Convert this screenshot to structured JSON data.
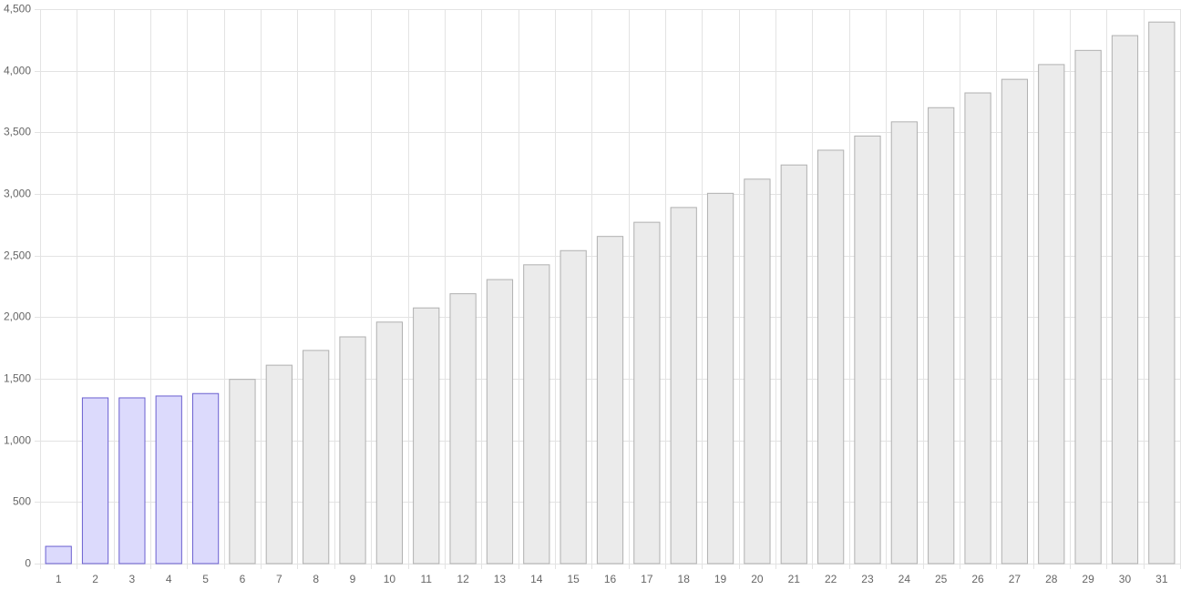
{
  "chart_data": {
    "type": "bar",
    "categories": [
      "1",
      "2",
      "3",
      "4",
      "5",
      "6",
      "7",
      "8",
      "9",
      "10",
      "11",
      "12",
      "13",
      "14",
      "15",
      "16",
      "17",
      "18",
      "19",
      "20",
      "21",
      "22",
      "23",
      "24",
      "25",
      "26",
      "27",
      "28",
      "29",
      "30",
      "31"
    ],
    "values": [
      140,
      1345,
      1345,
      1360,
      1380,
      1495,
      1610,
      1730,
      1840,
      1960,
      2075,
      2190,
      2305,
      2425,
      2540,
      2655,
      2770,
      2890,
      3005,
      3120,
      3235,
      3355,
      3470,
      3585,
      3700,
      3820,
      3930,
      4050,
      4165,
      4285,
      4395
    ],
    "colors": [
      "#dcdafc",
      "#dcdafc",
      "#dcdafc",
      "#dcdafc",
      "#dcdafc",
      "#ebebeb",
      "#ebebeb",
      "#ebebeb",
      "#ebebeb",
      "#ebebeb",
      "#ebebeb",
      "#ebebeb",
      "#ebebeb",
      "#ebebeb",
      "#ebebeb",
      "#ebebeb",
      "#ebebeb",
      "#ebebeb",
      "#ebebeb",
      "#ebebeb",
      "#ebebeb",
      "#ebebeb",
      "#ebebeb",
      "#ebebeb",
      "#ebebeb",
      "#ebebeb",
      "#ebebeb",
      "#ebebeb",
      "#ebebeb",
      "#ebebeb",
      "#ebebeb"
    ],
    "edgecolors": [
      "#6a5fd0",
      "#6a5fd0",
      "#6a5fd0",
      "#6a5fd0",
      "#6a5fd0",
      "#b0b0b0",
      "#b0b0b0",
      "#b0b0b0",
      "#b0b0b0",
      "#b0b0b0",
      "#b0b0b0",
      "#b0b0b0",
      "#b0b0b0",
      "#b0b0b0",
      "#b0b0b0",
      "#b0b0b0",
      "#b0b0b0",
      "#b0b0b0",
      "#b0b0b0",
      "#b0b0b0",
      "#b0b0b0",
      "#b0b0b0",
      "#b0b0b0",
      "#b0b0b0",
      "#b0b0b0",
      "#b0b0b0",
      "#b0b0b0",
      "#b0b0b0",
      "#b0b0b0",
      "#b0b0b0",
      "#b0b0b0"
    ],
    "ylim": [
      0,
      4500
    ],
    "yticks": [
      0,
      500,
      {
        "value": 1000,
        "label": "1,000"
      },
      {
        "value": 1500,
        "label": "1,500"
      },
      {
        "value": 2000,
        "label": "2,000"
      },
      {
        "value": 2500,
        "label": "2,500"
      },
      {
        "value": 3000,
        "label": "3,000"
      },
      {
        "value": 3500,
        "label": "3,500"
      },
      {
        "value": 4000,
        "label": "4,000"
      },
      {
        "value": 4500,
        "label": "4,500"
      }
    ],
    "grid": true
  }
}
